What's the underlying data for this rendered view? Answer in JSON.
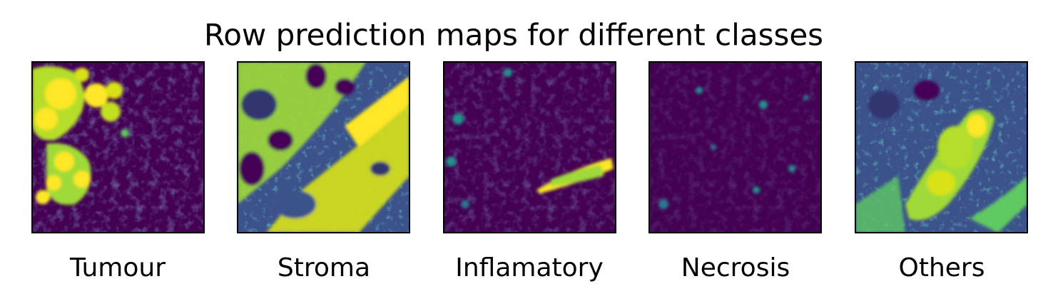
{
  "title": "Row prediction maps for different classes",
  "panels": [
    {
      "label": "Tumour"
    },
    {
      "label": "Stroma"
    },
    {
      "label": "Inflamatory"
    },
    {
      "label": "Necrosis"
    },
    {
      "label": "Others"
    }
  ]
}
